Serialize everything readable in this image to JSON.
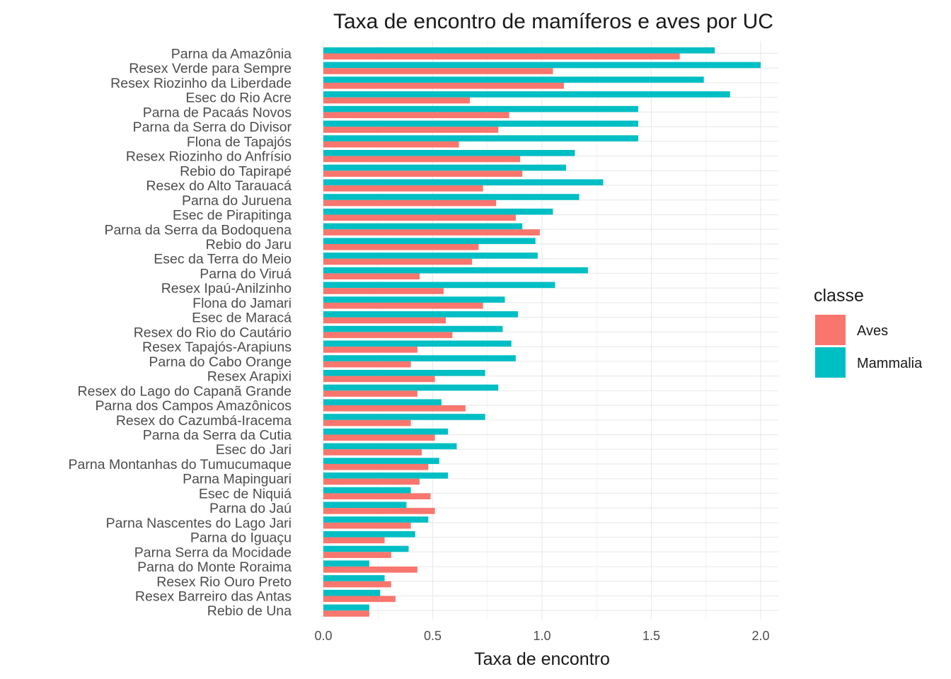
{
  "chart_data": {
    "type": "bar",
    "orientation": "horizontal",
    "title": "Taxa de encontro de mamíferos e aves por UC",
    "xlabel": "Taxa de encontro",
    "ylabel": "",
    "xlim": [
      0,
      2.05
    ],
    "xticks": [
      0.0,
      0.5,
      1.0,
      1.5,
      2.0
    ],
    "xtick_labels": [
      "0.0",
      "0.5",
      "1.0",
      "1.5",
      "2.0"
    ],
    "grid": true,
    "legend": {
      "title": "classe",
      "position": "right"
    },
    "categories": [
      "Parna da Amazônia",
      "Resex Verde para Sempre",
      "Resex Riozinho da Liberdade",
      "Esec do Rio Acre",
      "Parna de Pacaás Novos",
      "Parna da Serra do Divisor",
      "Flona de Tapajós",
      "Resex Riozinho do Anfrísio",
      "Rebio do Tapirapé",
      "Resex do Alto Tarauacá",
      "Parna do Juruena",
      "Esec de Pirapitinga",
      "Parna da Serra da Bodoquena",
      "Rebio do Jaru",
      "Esec da Terra do Meio",
      "Parna do Viruá",
      "Resex Ipaú-Anilzinho",
      "Flona do Jamari",
      "Esec de Maracá",
      "Resex do Rio do Cautário",
      "Resex Tapajós-Arapiuns",
      "Parna do Cabo Orange",
      "Resex Arapixi",
      "Resex do Lago do Capanã Grande",
      "Parna dos Campos Amazônicos",
      "Resex do Cazumbá-Iracema",
      "Parna da Serra da Cutia",
      "Esec do Jari",
      "Parna Montanhas do Tumucumaque",
      "Parna Mapinguari",
      "Esec de Niquiá",
      "Parna do Jaú",
      "Parna Nascentes do Lago Jari",
      "Parna do Iguaçu",
      "Parna Serra da Mocidade",
      "Parna do Monte Roraima",
      "Resex Rio Ouro Preto",
      "Resex Barreiro das Antas",
      "Rebio de Una"
    ],
    "series": [
      {
        "name": "Aves",
        "color": "#F8766D",
        "values": [
          1.63,
          1.05,
          1.1,
          0.67,
          0.85,
          0.8,
          0.62,
          0.9,
          0.91,
          0.73,
          0.79,
          0.88,
          0.99,
          0.71,
          0.68,
          0.44,
          0.55,
          0.73,
          0.56,
          0.59,
          0.43,
          0.4,
          0.51,
          0.43,
          0.65,
          0.4,
          0.51,
          0.45,
          0.48,
          0.44,
          0.49,
          0.51,
          0.4,
          0.28,
          0.31,
          0.43,
          0.31,
          0.33,
          0.21
        ]
      },
      {
        "name": "Mammalia",
        "color": "#00BFC4",
        "values": [
          1.79,
          2.0,
          1.74,
          1.86,
          1.44,
          1.44,
          1.44,
          1.15,
          1.11,
          1.28,
          1.17,
          1.05,
          0.91,
          0.97,
          0.98,
          1.21,
          1.06,
          0.83,
          0.89,
          0.82,
          0.86,
          0.88,
          0.74,
          0.8,
          0.54,
          0.74,
          0.57,
          0.61,
          0.53,
          0.57,
          0.4,
          0.38,
          0.48,
          0.42,
          0.39,
          0.21,
          0.28,
          0.26,
          0.21
        ]
      }
    ]
  }
}
